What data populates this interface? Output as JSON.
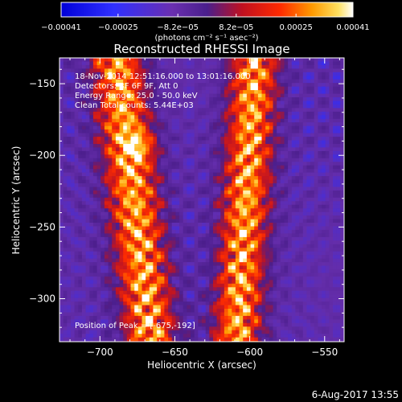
{
  "chart_data": {
    "type": "heatmap",
    "title": "Reconstructed RHESSI Image",
    "xlabel": "Heliocentric X (arcsec)",
    "ylabel": "Heliocentric Y (arcsec)",
    "xlim": [
      -727,
      -537
    ],
    "ylim": [
      -330,
      -132
    ],
    "x_ticks": [
      -700,
      -650,
      -600,
      -550
    ],
    "x_tick_labels": [
      "−700",
      "−650",
      "−600",
      "−550"
    ],
    "y_ticks": [
      -150,
      -200,
      -250,
      -300
    ],
    "y_tick_labels": [
      "−150",
      "−200",
      "−250",
      "−300"
    ],
    "colorbar": {
      "range": [
        -0.00041,
        0.00041
      ],
      "ticks": [
        -0.00041,
        -0.00025,
        -8.2e-05,
        8.2e-05,
        0.00025,
        0.00041
      ],
      "tick_labels": [
        "−0.00041",
        "−0.00025",
        "−8.2e−05",
        "8.2e−05",
        "0.00025",
        "0.00041"
      ],
      "unit_label": "(photons cm⁻² s⁻¹ asec⁻²)",
      "colors": [
        "#0000d8",
        "#3030ff",
        "#6a2fb0",
        "#4a1f8c",
        "#c01020",
        "#ff2a00",
        "#ff9a00",
        "#ffe060",
        "#ffffff"
      ]
    },
    "info_lines": [
      "18-Nov-2014 12:51:16.000 to 13:01:16.000",
      "Detectors: 3F 6F 9F, Att 0",
      "Energy Range: 25.0 - 50.0 keV",
      "Clean     Total counts: 5.44E+03"
    ],
    "peak_text": "Position of Peak = [-675,-192]",
    "peak": [
      -675,
      -192
    ],
    "ridges": [
      {
        "name": "left",
        "x_center_at_top": -690,
        "x_center_at_bottom": -667,
        "width": 22
      },
      {
        "name": "right",
        "x_center_at_top": -598,
        "x_center_at_bottom": -610,
        "width": 20
      }
    ]
  },
  "footer": {
    "date": "6-Aug-2017 13:55"
  }
}
